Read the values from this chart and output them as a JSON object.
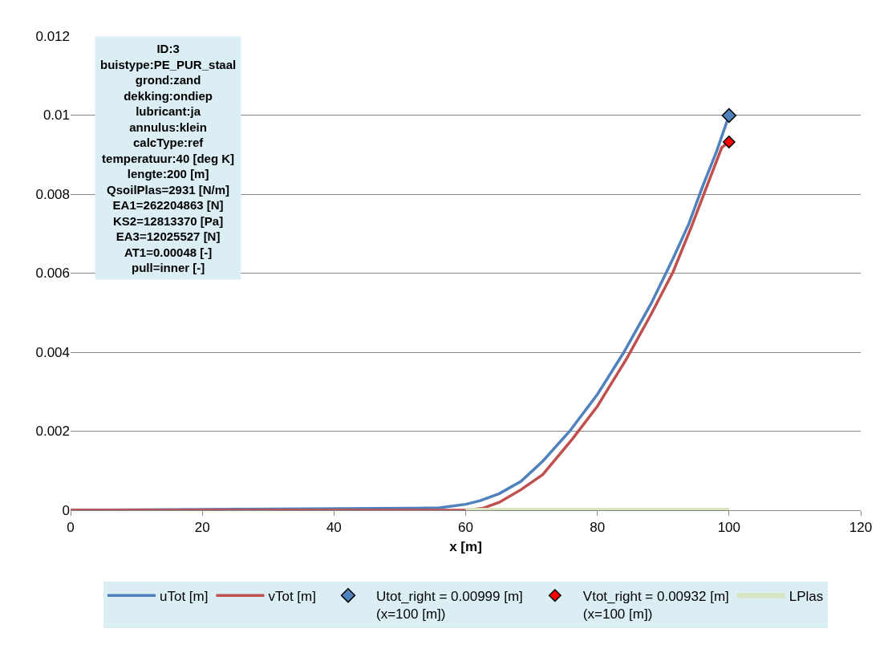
{
  "chart_data": {
    "type": "line",
    "xlabel": "x [m]",
    "xlim": [
      0,
      120
    ],
    "xticks": [
      0,
      20,
      40,
      60,
      80,
      100,
      120
    ],
    "ylim": [
      0,
      0.012
    ],
    "yticks": [
      0,
      0.002,
      0.004,
      0.006,
      0.008,
      0.01,
      0.012
    ],
    "grid": "y",
    "legend": "bottom",
    "line_style": "solid",
    "series": [
      {
        "name": "uTot [m]",
        "color": "#4f81bd",
        "marker": "none",
        "x": [
          0,
          52.3,
          56,
          60,
          62.2,
          65.1,
          68.4,
          71.7,
          75.8,
          80,
          84,
          88.2,
          91.5,
          93.9,
          96,
          98.1,
          100
        ],
        "values": [
          0,
          5e-05,
          6e-05,
          0.00015,
          0.00024,
          0.00042,
          0.00073,
          0.00124,
          0.002,
          0.00293,
          0.00399,
          0.00524,
          0.00637,
          0.00725,
          0.0082,
          0.00908,
          0.00999
        ]
      },
      {
        "name": "vTot [m]",
        "color": "#c0504d",
        "marker": "none",
        "x": [
          0,
          60,
          62.6,
          65.1,
          68.4,
          71.7,
          76.2,
          80,
          84.5,
          88.2,
          91.5,
          94.3,
          96.8,
          98.9,
          100
        ],
        "values": [
          0,
          0,
          5e-05,
          0.0002,
          0.00052,
          0.0009,
          0.0018,
          0.00263,
          0.00385,
          0.00497,
          0.00603,
          0.00718,
          0.00827,
          0.00918,
          0.00932
        ]
      },
      {
        "name": "Utot_right = 0.00999 [m]\n(x=100 [m])",
        "type": "scatter",
        "marker": "diamond",
        "color": "#4f81bd",
        "x": [
          100
        ],
        "values": [
          0.00999
        ]
      },
      {
        "name": "Vtot_right = 0.00932 [m]\n(x=100 [m])",
        "type": "scatter",
        "marker": "diamond",
        "color": "#ff0000",
        "x": [
          100
        ],
        "values": [
          0.00932
        ]
      },
      {
        "name": "LPlas",
        "color": "#d7e4bd",
        "marker": "none",
        "x": [
          60,
          100
        ],
        "values": [
          0,
          0
        ]
      }
    ],
    "annotations": [
      "ID:3\nbuistype:PE_PUR_staal\ngrond:zand\ndekking:ondiep\nlubricant:ja\nannulus:klein\ncalcType:ref\ntemperatuur:40 [deg K]\nlengte:200 [m]\nQsoilPlas=2931 [N/m]\nEA1=262204863 [N]\nKS2=12813370 [Pa]\nEA3=12025527 [N]\nAT1=0.00048 [-]\npull=inner [-]"
    ]
  }
}
